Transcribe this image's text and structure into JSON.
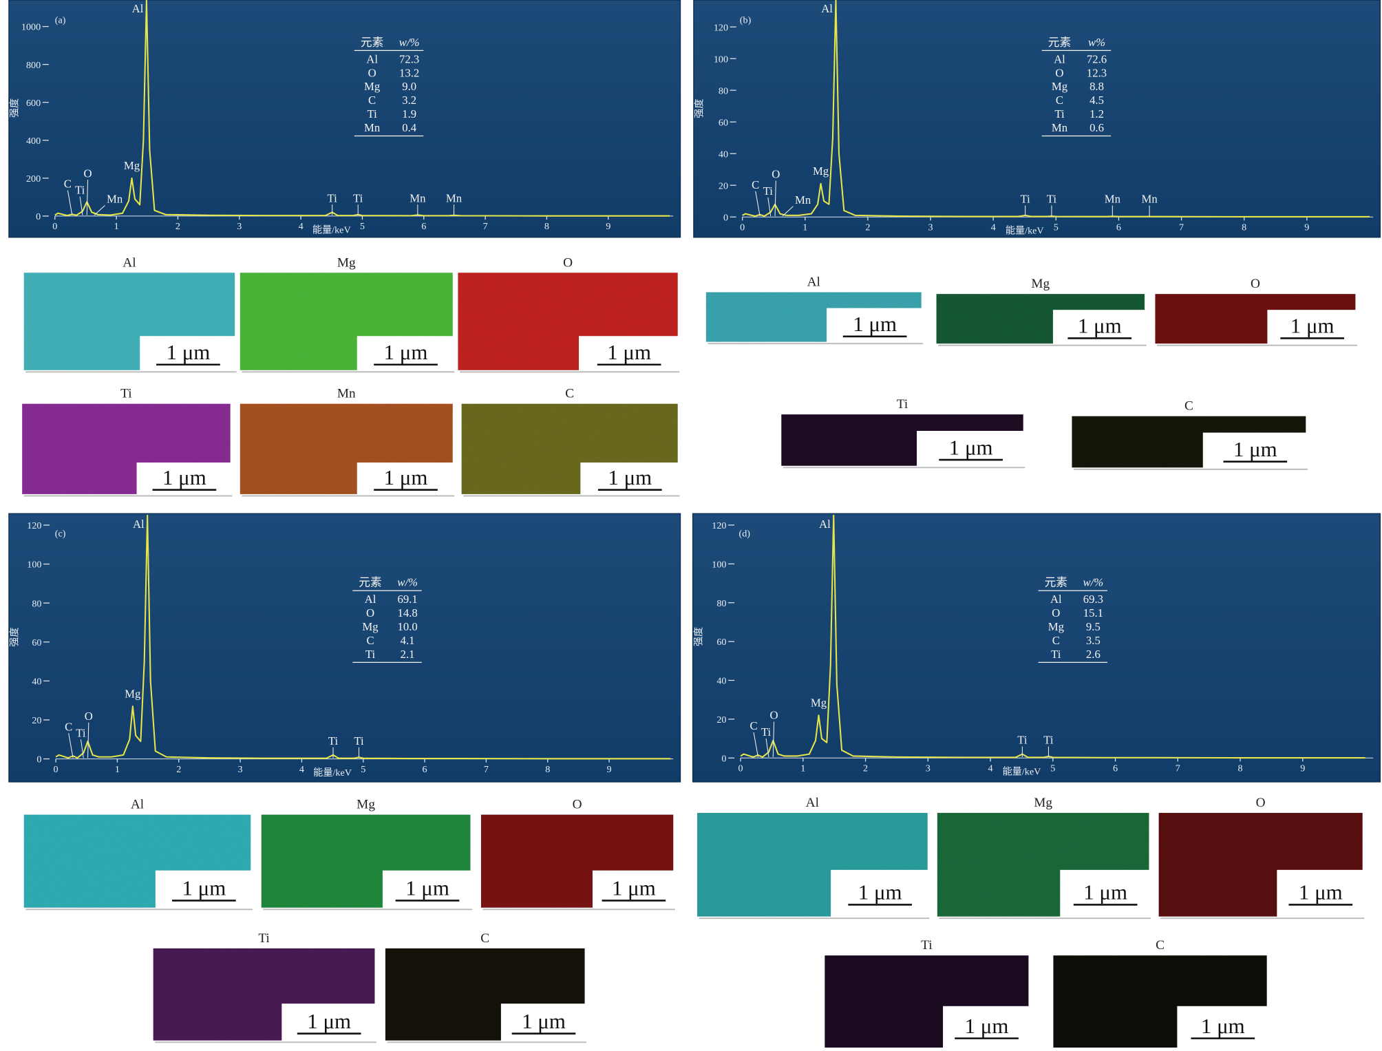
{
  "chart_data": [
    {
      "type": "line",
      "panel_label": "(a)",
      "xlabel": "能量/keV",
      "ylabel": "强度",
      "color": "#e6e64a",
      "x": [
        0,
        0.05,
        0.2,
        0.28,
        0.35,
        0.45,
        0.52,
        0.6,
        0.7,
        0.9,
        1.1,
        1.2,
        1.25,
        1.3,
        1.38,
        1.44,
        1.49,
        1.54,
        1.62,
        1.8,
        2.5,
        3.5,
        4.4,
        4.51,
        4.6,
        4.85,
        4.93,
        5.0,
        5.8,
        5.9,
        6.0,
        6.4,
        6.49,
        6.6,
        8,
        10
      ],
      "values": [
        5,
        15,
        3,
        10,
        4,
        25,
        75,
        20,
        8,
        5,
        15,
        80,
        200,
        90,
        60,
        400,
        1140,
        350,
        30,
        8,
        4,
        3,
        3,
        20,
        3,
        3,
        8,
        3,
        2,
        6,
        2,
        2,
        4,
        2,
        1,
        1
      ],
      "xlim": [
        0,
        10
      ],
      "ylim": [
        0,
        1140
      ],
      "xticks": [
        0,
        1,
        2,
        3,
        4,
        5,
        6,
        7,
        8,
        9
      ],
      "yticks": [
        0,
        200,
        400,
        600,
        800,
        1000
      ],
      "annotations": [
        {
          "text": "Al",
          "x": 1.49
        },
        {
          "text": "Mg",
          "x": 1.25
        },
        {
          "text": "C",
          "x": 0.28
        },
        {
          "text": "Ti",
          "x": 0.45
        },
        {
          "text": "O",
          "x": 0.52
        },
        {
          "text": "Mn",
          "x": 0.64
        },
        {
          "text": "Ti",
          "x": 4.51
        },
        {
          "text": "Ti",
          "x": 4.93
        },
        {
          "text": "Mn",
          "x": 5.9
        },
        {
          "text": "Mn",
          "x": 6.49
        }
      ],
      "table": {
        "header": [
          "元素",
          "w/%"
        ],
        "rows": [
          [
            "Al",
            "72.3"
          ],
          [
            "O",
            "13.2"
          ],
          [
            "Mg",
            "9.0"
          ],
          [
            "C",
            "3.2"
          ],
          [
            "Ti",
            "1.9"
          ],
          [
            "Mn",
            "0.4"
          ]
        ]
      }
    },
    {
      "type": "line",
      "panel_label": "(b)",
      "xlabel": "能量/keV",
      "ylabel": "强度",
      "color": "#e6e64a",
      "x": [
        0,
        0.05,
        0.2,
        0.28,
        0.35,
        0.45,
        0.52,
        0.6,
        0.7,
        0.9,
        1.1,
        1.2,
        1.25,
        1.3,
        1.38,
        1.44,
        1.49,
        1.54,
        1.62,
        1.8,
        2.5,
        3.5,
        4.4,
        4.51,
        4.6,
        4.85,
        4.93,
        5.0,
        5.8,
        5.9,
        6.0,
        6.4,
        6.49,
        6.6,
        8,
        10
      ],
      "values": [
        1,
        2,
        0.5,
        1.5,
        0.5,
        3,
        8,
        2,
        1,
        1,
        2,
        8,
        21,
        10,
        8,
        50,
        137,
        40,
        4,
        1,
        0.5,
        0.3,
        0.3,
        1,
        0.3,
        0.3,
        0.5,
        0.3,
        0.2,
        0.4,
        0.2,
        0.2,
        0.3,
        0.2,
        0.1,
        0.1
      ],
      "xlim": [
        0,
        10
      ],
      "ylim": [
        0,
        137
      ],
      "xticks": [
        0,
        1,
        2,
        3,
        4,
        5,
        6,
        7,
        8,
        9
      ],
      "yticks": [
        0,
        20,
        40,
        60,
        80,
        100,
        120
      ],
      "annotations": [
        {
          "text": "Al",
          "x": 1.49
        },
        {
          "text": "Mg",
          "x": 1.25
        },
        {
          "text": "C",
          "x": 0.28
        },
        {
          "text": "Ti",
          "x": 0.45
        },
        {
          "text": "O",
          "x": 0.52
        },
        {
          "text": "Mn",
          "x": 0.64
        },
        {
          "text": "Ti",
          "x": 4.51
        },
        {
          "text": "Ti",
          "x": 4.93
        },
        {
          "text": "Mn",
          "x": 5.9
        },
        {
          "text": "Mn",
          "x": 6.49
        }
      ],
      "table": {
        "header": [
          "元素",
          "w%"
        ],
        "rows": [
          [
            "Al",
            "72.6"
          ],
          [
            "O",
            "12.3"
          ],
          [
            "Mg",
            "8.8"
          ],
          [
            "C",
            "4.5"
          ],
          [
            "Ti",
            "1.2"
          ],
          [
            "Mn",
            "0.6"
          ]
        ]
      }
    },
    {
      "type": "line",
      "panel_label": "(c)",
      "xlabel": "能量/keV",
      "ylabel": "强度",
      "color": "#e6e64a",
      "x": [
        0,
        0.05,
        0.2,
        0.28,
        0.35,
        0.45,
        0.52,
        0.6,
        0.7,
        0.9,
        1.1,
        1.2,
        1.25,
        1.3,
        1.38,
        1.44,
        1.49,
        1.54,
        1.62,
        1.8,
        2.5,
        3.5,
        4.4,
        4.51,
        4.6,
        4.85,
        4.93,
        5.0,
        5.8,
        5.9,
        6.0,
        6.4,
        6.49,
        6.6,
        8,
        10
      ],
      "values": [
        1,
        2,
        0.5,
        1.5,
        0.5,
        3,
        9,
        2,
        1,
        1,
        2,
        10,
        27,
        12,
        9,
        50,
        125,
        40,
        4,
        1,
        0.5,
        0.3,
        0.3,
        2,
        0.3,
        0.3,
        0.8,
        0.3,
        0.2,
        0.2,
        0.2,
        0.2,
        0.2,
        0.2,
        0.1,
        0.1
      ],
      "xlim": [
        0,
        10
      ],
      "ylim": [
        0,
        125
      ],
      "xticks": [
        0,
        1,
        2,
        3,
        4,
        5,
        6,
        7,
        8,
        9
      ],
      "yticks": [
        0,
        20,
        40,
        60,
        80,
        100,
        120
      ],
      "annotations": [
        {
          "text": "Al",
          "x": 1.49
        },
        {
          "text": "Mg",
          "x": 1.25
        },
        {
          "text": "C",
          "x": 0.28
        },
        {
          "text": "Ti",
          "x": 0.45
        },
        {
          "text": "O",
          "x": 0.52
        },
        {
          "text": "Ti",
          "x": 4.51
        },
        {
          "text": "Ti",
          "x": 4.93
        }
      ],
      "table": {
        "header": [
          "元素",
          "w/%"
        ],
        "rows": [
          [
            "Al",
            "69.1"
          ],
          [
            "O",
            "14.8"
          ],
          [
            "Mg",
            "10.0"
          ],
          [
            "C",
            "4.1"
          ],
          [
            "Ti",
            "2.1"
          ]
        ]
      }
    },
    {
      "type": "line",
      "panel_label": "(d)",
      "xlabel": "能量/keV",
      "ylabel": "强度",
      "color": "#e6e64a",
      "x": [
        0,
        0.05,
        0.2,
        0.28,
        0.35,
        0.45,
        0.52,
        0.6,
        0.7,
        0.9,
        1.1,
        1.2,
        1.25,
        1.3,
        1.38,
        1.44,
        1.49,
        1.54,
        1.62,
        1.8,
        2.5,
        3.5,
        4.4,
        4.51,
        4.6,
        4.85,
        4.93,
        5.0,
        5.8,
        5.9,
        6.0,
        6.4,
        6.49,
        6.6,
        8,
        10
      ],
      "values": [
        1,
        2,
        0.5,
        1.5,
        0.5,
        3,
        9,
        2,
        1,
        1,
        2,
        9,
        22,
        10,
        8,
        48,
        125,
        38,
        4,
        1,
        0.5,
        0.3,
        0.3,
        2,
        0.3,
        0.3,
        0.8,
        0.3,
        0.2,
        0.2,
        0.2,
        0.2,
        0.2,
        0.2,
        0.1,
        0.1
      ],
      "xlim": [
        0,
        10
      ],
      "ylim": [
        0,
        125
      ],
      "xticks": [
        0,
        1,
        2,
        3,
        4,
        5,
        6,
        7,
        8,
        9
      ],
      "yticks": [
        0,
        20,
        40,
        60,
        80,
        100,
        120
      ],
      "annotations": [
        {
          "text": "Al",
          "x": 1.49
        },
        {
          "text": "Mg",
          "x": 1.25
        },
        {
          "text": "C",
          "x": 0.28
        },
        {
          "text": "Ti",
          "x": 0.45
        },
        {
          "text": "O",
          "x": 0.52
        },
        {
          "text": "Ti",
          "x": 4.51
        },
        {
          "text": "Ti",
          "x": 4.93
        }
      ],
      "table": {
        "header": [
          "元素",
          "w/%"
        ],
        "rows": [
          [
            "Al",
            "69.3"
          ],
          [
            "O",
            "15.1"
          ],
          [
            "Mg",
            "9.5"
          ],
          [
            "C",
            "3.5"
          ],
          [
            "Ti",
            "2.6"
          ]
        ]
      }
    }
  ],
  "element_maps": [
    {
      "scale_bar": "1 μm",
      "maps": [
        {
          "label": "Al",
          "color": "#42b4bd"
        },
        {
          "label": "Mg",
          "color": "#4cb838"
        },
        {
          "label": "O",
          "color": "#c4231f"
        },
        {
          "label": "Ti",
          "color": "#8b2c96"
        },
        {
          "label": "Mn",
          "color": "#a9521f"
        },
        {
          "label": "C",
          "color": "#6b6b1e"
        }
      ]
    },
    {
      "scale_bar": "1 μm",
      "maps": [
        {
          "label": "Al",
          "color": "#3aa6b0"
        },
        {
          "label": "Mg",
          "color": "#155a35"
        },
        {
          "label": "O",
          "color": "#6e1010"
        },
        {
          "label": "Ti",
          "color": "#1e0b22"
        },
        {
          "label": "C",
          "color": "#15150a"
        }
      ]
    },
    {
      "scale_bar": "1 μm",
      "maps": [
        {
          "label": "Al",
          "color": "#2fb0b8"
        },
        {
          "label": "Mg",
          "color": "#1f8a3c"
        },
        {
          "label": "O",
          "color": "#7a1212"
        },
        {
          "label": "Ti",
          "color": "#4a1a55"
        },
        {
          "label": "C",
          "color": "#141208"
        }
      ]
    },
    {
      "scale_bar": "1 μm",
      "maps": [
        {
          "label": "Al",
          "color": "#2a9fa0"
        },
        {
          "label": "Mg",
          "color": "#1a6a3a"
        },
        {
          "label": "O",
          "color": "#5a0e0e"
        },
        {
          "label": "Ti",
          "color": "#1a0a20"
        },
        {
          "label": "C",
          "color": "#0e0e08"
        }
      ]
    }
  ]
}
